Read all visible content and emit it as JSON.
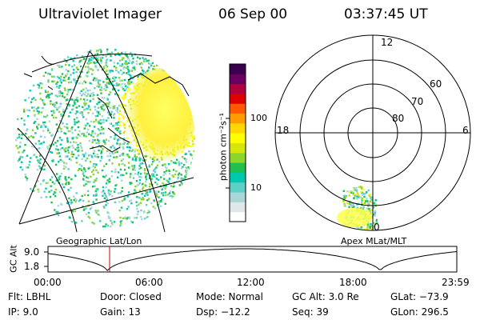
{
  "header": {
    "instrument": "Ultraviolet Imager",
    "date": "06 Sep 00",
    "time": "03:37:45 UT"
  },
  "left_panel": {
    "label": "Geographic Lat/Lon"
  },
  "colorbar": {
    "unit_label": "photon cm⁻²s⁻¹",
    "ticks": [
      "100",
      "10"
    ],
    "colors": [
      "#ffffff",
      "#dfe8e8",
      "#a9d6d8",
      "#5fd0c8",
      "#00c8b0",
      "#20c050",
      "#8ad62a",
      "#d6e60a",
      "#ffff00",
      "#ffd800",
      "#ff9c00",
      "#ff5a00",
      "#e00000",
      "#b00040",
      "#6a0060",
      "#3a0050"
    ]
  },
  "right_panel": {
    "label": "Apex MLat/MLT",
    "mlt_labels": {
      "top": "12",
      "left": "18",
      "right": "6",
      "bottom": "0"
    },
    "lat_labels": [
      "60",
      "70",
      "80"
    ]
  },
  "altitude_plot": {
    "ylabel": "GC Alt",
    "yticks": [
      "9.0",
      "1.8"
    ],
    "xticks": [
      "00:00",
      "06:00",
      "12:00",
      "18:00",
      "23:59"
    ],
    "marker_color": "#cc0000"
  },
  "footer": {
    "flt": "Flt: LBHL",
    "ip": "IP:  9.0",
    "door": "Door: Closed",
    "gain": "Gain: 13",
    "mode": "Mode: Normal",
    "dsp": "Dsp:  −12.2",
    "gcalt": "GC Alt: 3.0 Re",
    "seq": "Seq: 39",
    "glat": "GLat: −73.9",
    "glon": "GLon: 296.5"
  }
}
